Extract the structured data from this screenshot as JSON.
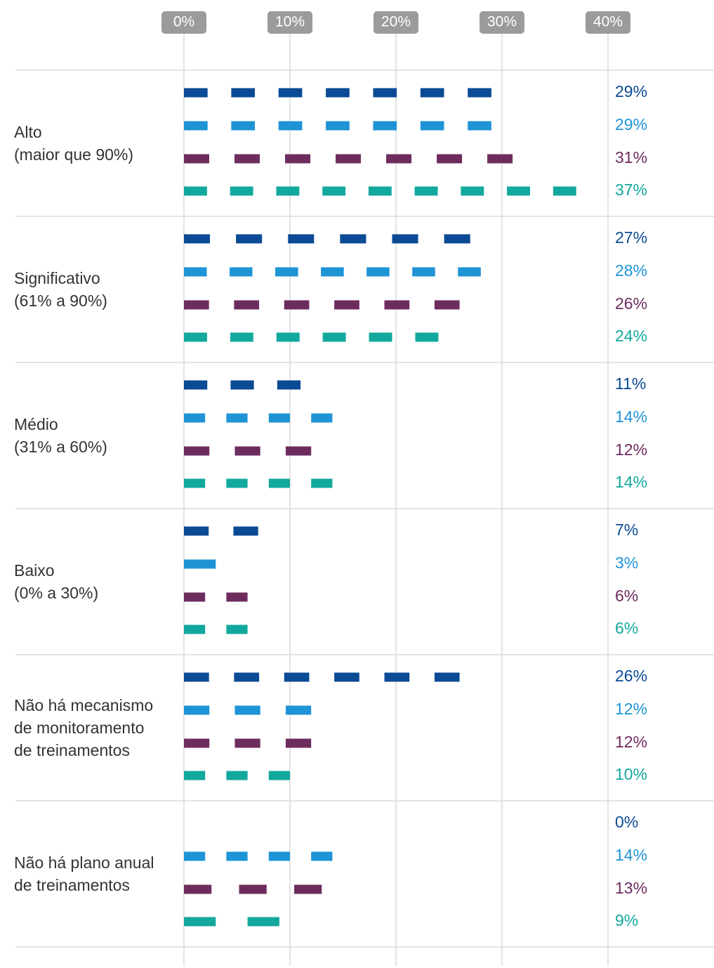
{
  "chart_data": {
    "type": "dashed-bar",
    "categories": [
      "Alto\n(maior que 90%)",
      "Significativo\n(61% a 90%)",
      "Médio\n(31% a 60%)",
      "Baixo\n(0% a 30%)",
      "Não há mecanismo\nde monitoramento\nde treinamentos",
      "Não há plano anual\nde treinamentos"
    ],
    "series": [
      {
        "color": "#0b4a94",
        "values": [
          29,
          27,
          11,
          7,
          26,
          0
        ],
        "value_labels": [
          "29%",
          "27%",
          "11%",
          "7%",
          "26%",
          "0%"
        ]
      },
      {
        "color": "#1e94d6",
        "values": [
          29,
          28,
          14,
          3,
          12,
          14
        ],
        "value_labels": [
          "29%",
          "28%",
          "14%",
          "3%",
          "12%",
          "14%"
        ]
      },
      {
        "color": "#6d2c5e",
        "values": [
          31,
          26,
          12,
          6,
          12,
          13
        ],
        "value_labels": [
          "31%",
          "26%",
          "12%",
          "6%",
          "12%",
          "13%"
        ]
      },
      {
        "color": "#12a89d",
        "values": [
          37,
          24,
          14,
          6,
          10,
          9
        ],
        "value_labels": [
          "37%",
          "24%",
          "14%",
          "6%",
          "10%",
          "9%"
        ]
      }
    ],
    "xlim": [
      0,
      40
    ],
    "xticks": [
      {
        "value": 0,
        "label": "0%"
      },
      {
        "value": 10,
        "label": "10%"
      },
      {
        "value": 20,
        "label": "20%"
      },
      {
        "value": 30,
        "label": "30%"
      },
      {
        "value": 40,
        "label": "40%"
      }
    ],
    "grid": true
  }
}
